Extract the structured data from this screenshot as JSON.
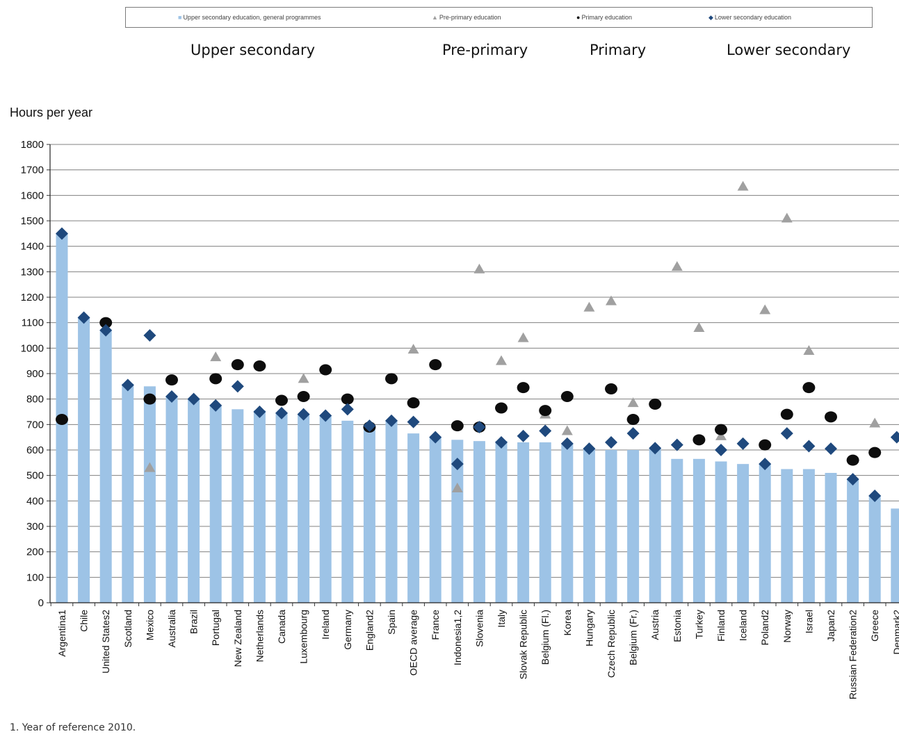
{
  "legend": {
    "upper_secondary": "Upper secondary education, general programmes",
    "pre_primary": "Pre-primary education",
    "primary": "Primary education",
    "lower_secondary": "Lower secondary education"
  },
  "labels": {
    "upper_secondary": "Upper secondary",
    "pre_primary": "Pre-primary",
    "primary": "Primary",
    "lower_secondary": "Lower secondary"
  },
  "footnote": "1. Year of reference 2010.",
  "chart_data": {
    "type": "bar",
    "ylabel": "Hours per year",
    "ylim": [
      0,
      1800
    ],
    "yticks": [
      0,
      100,
      200,
      300,
      400,
      500,
      600,
      700,
      800,
      900,
      1000,
      1100,
      1200,
      1300,
      1400,
      1500,
      1600,
      1700,
      1800
    ],
    "grid": true,
    "legend_position": "top",
    "categories": [
      "Argentina1",
      "Chile",
      "United States2",
      "Scotland",
      "Mexico",
      "Australia",
      "Brazil",
      "Portugal",
      "New Zealand",
      "Netherlands",
      "Canada",
      "Luxembourg",
      "Ireland",
      "Germany",
      "England2",
      "Spain",
      "OECD average",
      "France",
      "Indonesia1,2",
      "Slovenia",
      "Italy",
      "Slovak Republic",
      "Belgium (Fl.)",
      "Korea",
      "Hungary",
      "Czech Republic",
      "Belgium (Fr.)",
      "Austria",
      "Estonia",
      "Turkey",
      "Finland",
      "Iceland",
      "Poland2",
      "Norway",
      "Israel",
      "Japan2",
      "Russian Federation2",
      "Greece",
      "Denmark2"
    ],
    "series": [
      {
        "name": "Upper secondary education, general programmes",
        "type": "bar",
        "color": "#9dc3e6",
        "values": [
          1450,
          1120,
          1070,
          860,
          850,
          810,
          800,
          775,
          760,
          755,
          745,
          740,
          735,
          715,
          695,
          715,
          665,
          650,
          640,
          635,
          635,
          630,
          630,
          625,
          605,
          600,
          600,
          607,
          565,
          565,
          555,
          545,
          545,
          525,
          525,
          510,
          485,
          420,
          370
        ]
      },
      {
        "name": "Pre-primary education",
        "type": "triangle",
        "color": "#a0a0a0",
        "values": [
          null,
          null,
          null,
          null,
          530,
          null,
          null,
          965,
          null,
          null,
          null,
          880,
          null,
          null,
          null,
          null,
          995,
          null,
          450,
          1310,
          950,
          1040,
          740,
          675,
          1160,
          1185,
          785,
          null,
          1320,
          1080,
          655,
          1635,
          1150,
          1510,
          990,
          null,
          null,
          705,
          null
        ]
      },
      {
        "name": "Primary education",
        "type": "circle",
        "color": "#0d0d0d",
        "values": [
          720,
          null,
          1100,
          null,
          800,
          875,
          null,
          880,
          935,
          930,
          795,
          810,
          915,
          800,
          690,
          880,
          785,
          935,
          695,
          690,
          765,
          845,
          755,
          810,
          null,
          840,
          720,
          780,
          null,
          640,
          680,
          null,
          620,
          740,
          845,
          730,
          560,
          590,
          null
        ]
      },
      {
        "name": "Lower secondary education",
        "type": "diamond",
        "color": "#1f497d",
        "values": [
          1450,
          1120,
          1070,
          855,
          1050,
          810,
          800,
          775,
          850,
          750,
          745,
          740,
          735,
          760,
          695,
          715,
          710,
          650,
          545,
          690,
          630,
          655,
          675,
          625,
          605,
          630,
          665,
          607,
          620,
          null,
          600,
          625,
          545,
          665,
          615,
          605,
          485,
          420,
          650
        ]
      }
    ]
  }
}
